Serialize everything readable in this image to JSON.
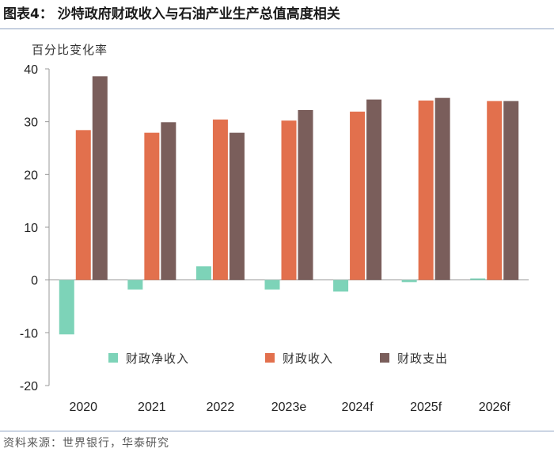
{
  "figure": {
    "title": "图表4： 沙特政府财政收入与石油产业生产总值高度相关",
    "source": "资料来源：世界银行，华泰研究"
  },
  "chart_data": {
    "type": "bar",
    "ylabel": "百分比变化率",
    "xlabel": "",
    "categories": [
      "2020",
      "2021",
      "2022",
      "2023e",
      "2024f",
      "2025f",
      "2026f"
    ],
    "series": [
      {
        "name": "财政净收入",
        "color": "#7dd3b8",
        "values": [
          -10.3,
          -1.8,
          2.6,
          -1.8,
          -2.2,
          -0.4,
          0.3
        ]
      },
      {
        "name": "财政收入",
        "color": "#e2704d",
        "values": [
          28.4,
          27.9,
          30.4,
          30.2,
          31.9,
          34.0,
          33.9
        ]
      },
      {
        "name": "财政支出",
        "color": "#7a5e5b",
        "values": [
          38.6,
          29.9,
          27.9,
          32.2,
          34.2,
          34.5,
          33.9
        ]
      }
    ],
    "ylim": [
      -20,
      40
    ],
    "yticks": [
      -20,
      -10,
      0,
      10,
      20,
      30,
      40
    ],
    "grid": false,
    "legend": "bottom-inside"
  }
}
